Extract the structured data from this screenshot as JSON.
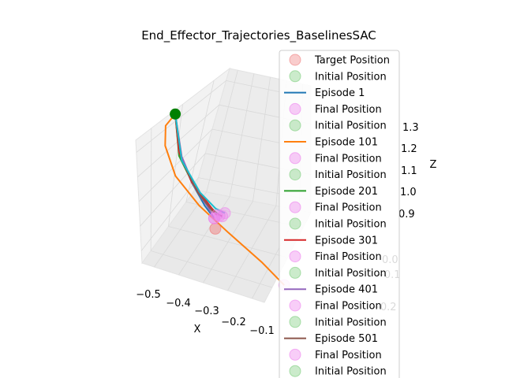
{
  "chart_data": {
    "type": "line",
    "projection": "3d",
    "title": "End_Effector_Trajectories_BaselinesSAC",
    "xlabel": "X",
    "ylabel": "",
    "zlabel": "Z",
    "grid": true,
    "legend_placement": "right",
    "x_ticks": [
      "−0.5",
      "−0.4",
      "−0.3",
      "−0.2",
      "−0.1"
    ],
    "y_ticks": [
      "0.0",
      "−0.1",
      "−0.2"
    ],
    "z_ticks": [
      "1.3",
      "1.2",
      "1.1",
      "1.0",
      "0.9"
    ],
    "xlim": [
      -0.55,
      -0.05
    ],
    "zlim": [
      0.85,
      1.35
    ],
    "target": {
      "x": -0.3,
      "y": -0.02,
      "z": 1.0
    },
    "initial_position": {
      "x": -0.42,
      "y": 0.05,
      "z": 1.3
    },
    "series": [
      {
        "name": "Episode 1",
        "color": "#1f77b4",
        "x": [
          -0.42,
          -0.41,
          -0.37,
          -0.33,
          -0.3
        ],
        "y": [
          0.05,
          0.04,
          0.02,
          0.0,
          -0.01
        ],
        "z": [
          1.3,
          1.2,
          1.12,
          1.06,
          1.03
        ]
      },
      {
        "name": "Episode 101",
        "color": "#ff7f0e",
        "x": [
          -0.42,
          -0.46,
          -0.47,
          -0.44,
          -0.36,
          -0.26,
          -0.14,
          -0.06
        ],
        "y": [
          0.05,
          0.04,
          0.02,
          0.0,
          -0.02,
          -0.04,
          -0.05,
          -0.06
        ],
        "z": [
          1.3,
          1.26,
          1.2,
          1.12,
          1.05,
          0.99,
          0.93,
          0.88
        ]
      },
      {
        "name": "Episode 201",
        "color": "#2ca02c",
        "x": [
          -0.42,
          -0.41,
          -0.36,
          -0.31,
          -0.28
        ],
        "y": [
          0.05,
          0.04,
          0.02,
          0.0,
          -0.01
        ],
        "z": [
          1.3,
          1.19,
          1.11,
          1.06,
          1.04
        ]
      },
      {
        "name": "Episode 301",
        "color": "#d62728",
        "x": [
          -0.42,
          -0.41,
          -0.37,
          -0.32,
          -0.29
        ],
        "y": [
          0.05,
          0.04,
          0.02,
          0.0,
          -0.01
        ],
        "z": [
          1.3,
          1.2,
          1.12,
          1.07,
          1.04
        ]
      },
      {
        "name": "Episode 401",
        "color": "#9467bd",
        "x": [
          -0.42,
          -0.4,
          -0.36,
          -0.32,
          -0.3
        ],
        "y": [
          0.05,
          0.04,
          0.02,
          0.0,
          -0.01
        ],
        "z": [
          1.3,
          1.19,
          1.11,
          1.06,
          1.03
        ]
      },
      {
        "name": "Episode 501",
        "color": "#8c564b",
        "x": [
          -0.42,
          -0.4,
          -0.35,
          -0.3,
          -0.27
        ],
        "y": [
          0.05,
          0.04,
          0.02,
          0.0,
          -0.01
        ],
        "z": [
          1.3,
          1.18,
          1.1,
          1.05,
          1.04
        ]
      },
      {
        "name": "",
        "color": "#17becf",
        "x": [
          -0.42,
          -0.4,
          -0.34,
          -0.29,
          -0.26
        ],
        "y": [
          0.05,
          0.04,
          0.02,
          0.0,
          -0.01
        ],
        "z": [
          1.3,
          1.18,
          1.1,
          1.06,
          1.05
        ]
      }
    ],
    "final_positions": [
      {
        "x": -0.3,
        "y": -0.01,
        "z": 1.03
      },
      {
        "x": -0.06,
        "y": -0.06,
        "z": 0.88
      },
      {
        "x": -0.28,
        "y": -0.01,
        "z": 1.04
      },
      {
        "x": -0.29,
        "y": -0.01,
        "z": 1.04
      },
      {
        "x": -0.3,
        "y": -0.01,
        "z": 1.03
      },
      {
        "x": -0.27,
        "y": -0.01,
        "z": 1.04
      },
      {
        "x": -0.26,
        "y": -0.01,
        "z": 1.05
      }
    ],
    "legend": [
      {
        "label": "Target Position",
        "kind": "marker",
        "color": "#f08080"
      },
      {
        "label": "Initial Position",
        "kind": "marker",
        "color": "#7ccd7c"
      },
      {
        "label": "Episode 1",
        "kind": "line",
        "color": "#1f77b4"
      },
      {
        "label": "Final Position",
        "kind": "marker",
        "color": "#ee82ee"
      },
      {
        "label": "Initial Position",
        "kind": "marker",
        "color": "#7ccd7c"
      },
      {
        "label": "Episode 101",
        "kind": "line",
        "color": "#ff7f0e"
      },
      {
        "label": "Final Position",
        "kind": "marker",
        "color": "#ee82ee"
      },
      {
        "label": "Initial Position",
        "kind": "marker",
        "color": "#7ccd7c"
      },
      {
        "label": "Episode 201",
        "kind": "line",
        "color": "#2ca02c"
      },
      {
        "label": "Final Position",
        "kind": "marker",
        "color": "#ee82ee"
      },
      {
        "label": "Initial Position",
        "kind": "marker",
        "color": "#7ccd7c"
      },
      {
        "label": "Episode 301",
        "kind": "line",
        "color": "#d62728"
      },
      {
        "label": "Final Position",
        "kind": "marker",
        "color": "#ee82ee"
      },
      {
        "label": "Initial Position",
        "kind": "marker",
        "color": "#7ccd7c"
      },
      {
        "label": "Episode 401",
        "kind": "line",
        "color": "#9467bd"
      },
      {
        "label": "Final Position",
        "kind": "marker",
        "color": "#ee82ee"
      },
      {
        "label": "Initial Position",
        "kind": "marker",
        "color": "#7ccd7c"
      },
      {
        "label": "Episode 501",
        "kind": "line",
        "color": "#8c564b"
      },
      {
        "label": "Final Position",
        "kind": "marker",
        "color": "#ee82ee"
      },
      {
        "label": "Initial Position",
        "kind": "marker",
        "color": "#7ccd7c"
      }
    ],
    "colors": {
      "initial_marker": "#008000",
      "pane": "#f2f2f2",
      "grid": "#d9d9d9"
    }
  }
}
